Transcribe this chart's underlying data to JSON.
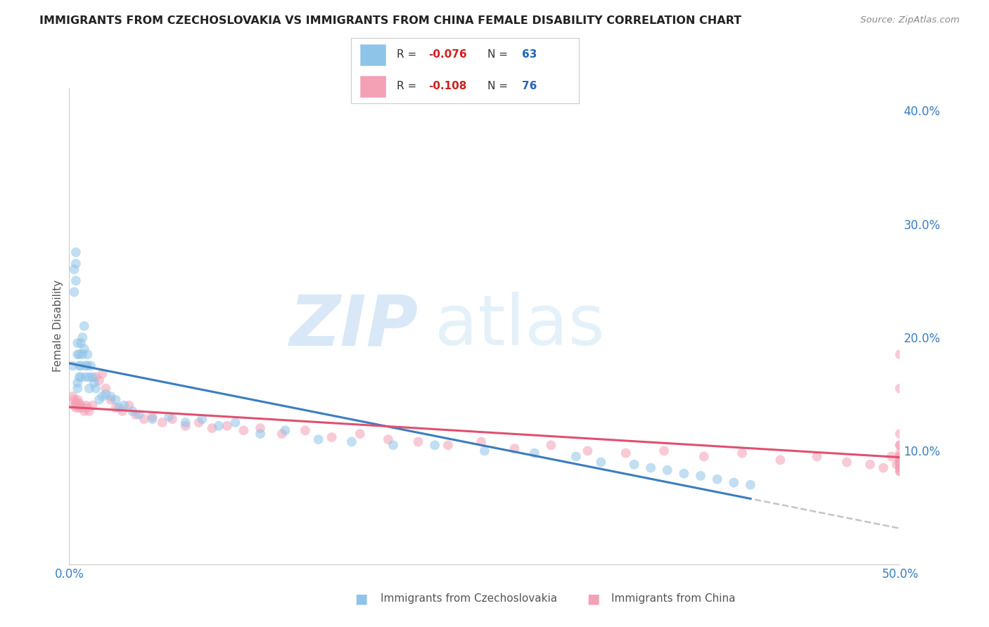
{
  "title": "IMMIGRANTS FROM CZECHOSLOVAKIA VS IMMIGRANTS FROM CHINA FEMALE DISABILITY CORRELATION CHART",
  "source": "Source: ZipAtlas.com",
  "ylabel": "Female Disability",
  "xlim": [
    0.0,
    0.5
  ],
  "ylim": [
    0.0,
    0.42
  ],
  "yticks": [
    0.1,
    0.2,
    0.3,
    0.4
  ],
  "ytick_labels": [
    "10.0%",
    "20.0%",
    "30.0%",
    "40.0%"
  ],
  "legend_R1": "-0.076",
  "legend_N1": "63",
  "legend_R2": "-0.108",
  "legend_N2": "76",
  "color_czech": "#8ec4e8",
  "color_china": "#f4a0b5",
  "color_czech_line": "#3a7ebf",
  "color_china_line": "#e05070",
  "color_dash_line": "#bbbbbb",
  "background_color": "#ffffff",
  "grid_color": "#dddddd",
  "czech_x": [
    0.002,
    0.003,
    0.003,
    0.004,
    0.004,
    0.004,
    0.005,
    0.005,
    0.005,
    0.005,
    0.006,
    0.006,
    0.006,
    0.007,
    0.007,
    0.007,
    0.008,
    0.008,
    0.009,
    0.009,
    0.01,
    0.01,
    0.011,
    0.011,
    0.012,
    0.012,
    0.013,
    0.014,
    0.015,
    0.016,
    0.018,
    0.02,
    0.022,
    0.025,
    0.028,
    0.03,
    0.033,
    0.038,
    0.042,
    0.05,
    0.06,
    0.07,
    0.08,
    0.09,
    0.1,
    0.115,
    0.13,
    0.15,
    0.17,
    0.195,
    0.22,
    0.25,
    0.28,
    0.305,
    0.32,
    0.34,
    0.35,
    0.36,
    0.37,
    0.38,
    0.39,
    0.4,
    0.41
  ],
  "czech_y": [
    0.175,
    0.26,
    0.24,
    0.275,
    0.265,
    0.25,
    0.195,
    0.185,
    0.16,
    0.155,
    0.185,
    0.175,
    0.165,
    0.195,
    0.175,
    0.165,
    0.2,
    0.185,
    0.21,
    0.19,
    0.175,
    0.165,
    0.185,
    0.175,
    0.165,
    0.155,
    0.175,
    0.165,
    0.16,
    0.155,
    0.145,
    0.148,
    0.15,
    0.148,
    0.145,
    0.138,
    0.14,
    0.135,
    0.132,
    0.128,
    0.13,
    0.125,
    0.128,
    0.122,
    0.125,
    0.115,
    0.118,
    0.11,
    0.108,
    0.105,
    0.105,
    0.1,
    0.098,
    0.095,
    0.09,
    0.088,
    0.085,
    0.083,
    0.08,
    0.078,
    0.075,
    0.072,
    0.07
  ],
  "china_x": [
    0.002,
    0.003,
    0.003,
    0.004,
    0.004,
    0.005,
    0.005,
    0.006,
    0.006,
    0.007,
    0.008,
    0.009,
    0.01,
    0.011,
    0.012,
    0.014,
    0.016,
    0.018,
    0.02,
    0.022,
    0.025,
    0.028,
    0.032,
    0.036,
    0.04,
    0.045,
    0.05,
    0.056,
    0.062,
    0.07,
    0.078,
    0.086,
    0.095,
    0.105,
    0.115,
    0.128,
    0.142,
    0.158,
    0.175,
    0.192,
    0.21,
    0.228,
    0.248,
    0.268,
    0.29,
    0.312,
    0.335,
    0.358,
    0.382,
    0.405,
    0.428,
    0.45,
    0.468,
    0.482,
    0.49,
    0.495,
    0.498,
    0.5,
    0.5,
    0.5,
    0.5,
    0.5,
    0.5,
    0.5,
    0.5,
    0.5,
    0.5,
    0.5,
    0.5,
    0.5,
    0.5,
    0.5,
    0.5,
    0.5,
    0.5,
    0.5
  ],
  "china_y": [
    0.148,
    0.145,
    0.14,
    0.142,
    0.138,
    0.145,
    0.14,
    0.142,
    0.138,
    0.14,
    0.138,
    0.135,
    0.14,
    0.138,
    0.135,
    0.14,
    0.165,
    0.162,
    0.168,
    0.155,
    0.145,
    0.138,
    0.135,
    0.14,
    0.132,
    0.128,
    0.13,
    0.125,
    0.128,
    0.122,
    0.125,
    0.12,
    0.122,
    0.118,
    0.12,
    0.115,
    0.118,
    0.112,
    0.115,
    0.11,
    0.108,
    0.105,
    0.108,
    0.102,
    0.105,
    0.1,
    0.098,
    0.1,
    0.095,
    0.098,
    0.092,
    0.095,
    0.09,
    0.088,
    0.085,
    0.095,
    0.088,
    0.185,
    0.155,
    0.105,
    0.098,
    0.115,
    0.092,
    0.088,
    0.095,
    0.085,
    0.09,
    0.088,
    0.082,
    0.092,
    0.095,
    0.088,
    0.085,
    0.09,
    0.082,
    0.105
  ]
}
